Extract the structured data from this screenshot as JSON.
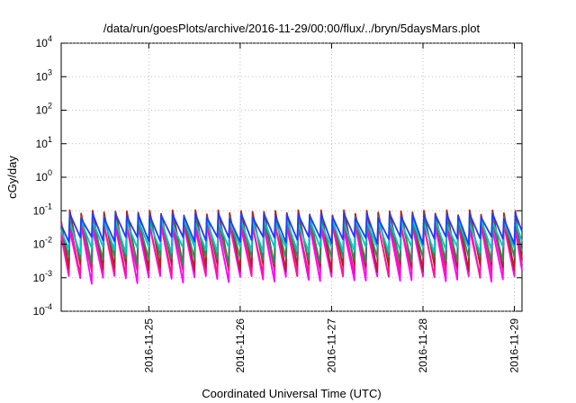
{
  "chart_data": {
    "type": "line",
    "title": "/data/run/goesPlots/archive/2016-11-29/00:00/flux/../bryn/5daysMars.plot",
    "xlabel": "Coordinated Universal Time (UTC)",
    "ylabel": "cGy/day",
    "yscale": "log",
    "ylim": [
      0.0001,
      10000
    ],
    "xlim": [
      "2016-11-24 01:00",
      "2016-11-29 02:00"
    ],
    "grid": true,
    "y_ticks": [
      {
        "base": "10",
        "exp": "-4"
      },
      {
        "base": "10",
        "exp": "-3"
      },
      {
        "base": "10",
        "exp": "-2"
      },
      {
        "base": "10",
        "exp": "-1"
      },
      {
        "base": "10",
        "exp": "0"
      },
      {
        "base": "10",
        "exp": "1"
      },
      {
        "base": "10",
        "exp": "2"
      },
      {
        "base": "10",
        "exp": "3"
      },
      {
        "base": "10",
        "exp": "4"
      }
    ],
    "x_ticks": [
      "2016-11-25",
      "2016-11-26",
      "2016-11-27",
      "2016-11-28",
      "2016-11-29"
    ],
    "pattern": {
      "period_hours": 3,
      "peak_values": [
        0.035,
        0.055,
        0.075,
        0.095
      ],
      "trough_values": [
        0.0008,
        0.0015,
        0.003,
        0.006,
        0.012
      ]
    },
    "series": [
      {
        "color": "#ff00ff",
        "peak": 0.035,
        "trough": 0.0008
      },
      {
        "color": "#ff1493",
        "peak": 0.045,
        "trough": 0.0012
      },
      {
        "color": "#b22222",
        "peak": 0.095,
        "trough": 0.0018
      },
      {
        "color": "#2e8b57",
        "peak": 0.06,
        "trough": 0.003
      },
      {
        "color": "#00c8c8",
        "peak": 0.05,
        "trough": 0.006
      },
      {
        "color": "#1e3cff",
        "peak": 0.075,
        "trough": 0.012
      }
    ]
  }
}
